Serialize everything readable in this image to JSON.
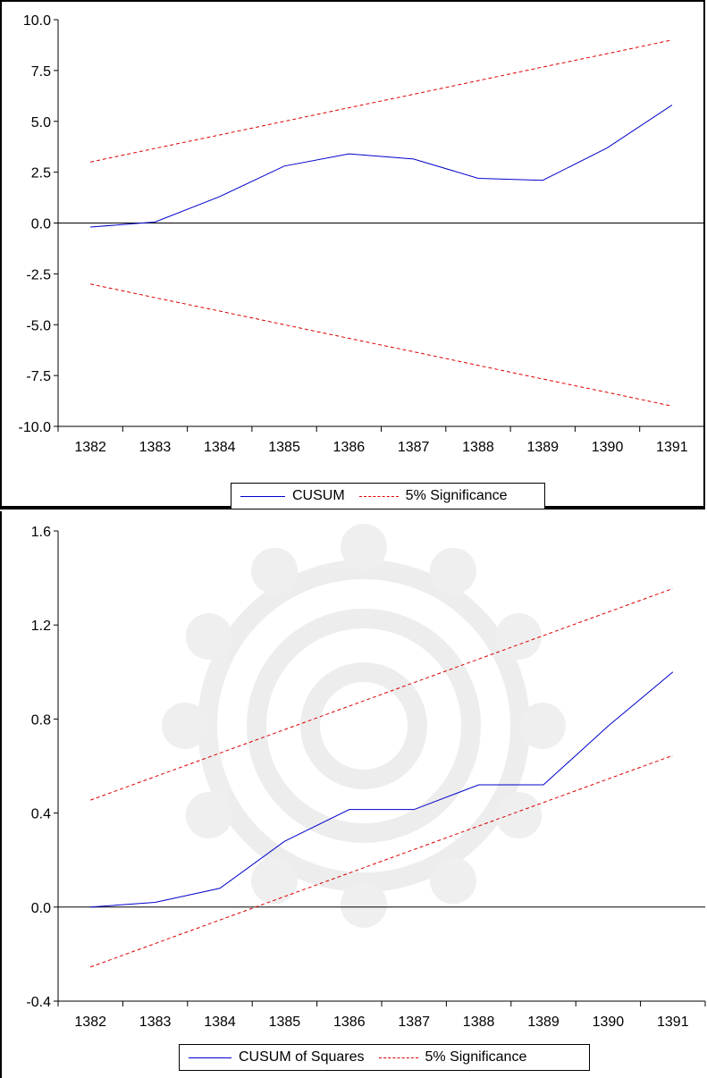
{
  "chart_data": [
    {
      "type": "line",
      "x": [
        "1382",
        "1383",
        "1384",
        "1385",
        "1386",
        "1387",
        "1388",
        "1389",
        "1390",
        "1391"
      ],
      "series": [
        {
          "name": "CUSUM",
          "color": "#0000cc",
          "style": "solid",
          "values": [
            -0.2,
            0.05,
            1.3,
            2.8,
            3.4,
            3.15,
            2.2,
            2.1,
            3.7,
            5.8
          ]
        },
        {
          "name": "5% Significance",
          "color": "#dd0000",
          "style": "dashed",
          "values": [
            3.0,
            3.67,
            4.33,
            5.0,
            5.67,
            6.33,
            7.0,
            7.67,
            8.33,
            9.0
          ]
        },
        {
          "name": "",
          "color": "#dd0000",
          "style": "dashed",
          "values": [
            -3.0,
            -3.67,
            -4.33,
            -5.0,
            -5.67,
            -6.33,
            -7.0,
            -7.67,
            -8.33,
            -9.0
          ]
        }
      ],
      "yticks": [
        "10.0",
        "7.5",
        "5.0",
        "2.5",
        "0.0",
        "-2.5",
        "-5.0",
        "-7.5",
        "-10.0"
      ],
      "ylim": [
        -10,
        10
      ],
      "zero_line": true,
      "legend": {
        "position": "bottom-center",
        "entries": [
          "CUSUM",
          "5% Significance"
        ]
      }
    },
    {
      "type": "line",
      "x": [
        "1382",
        "1383",
        "1384",
        "1385",
        "1386",
        "1387",
        "1388",
        "1389",
        "1390",
        "1391"
      ],
      "series": [
        {
          "name": "CUSUM of Squares",
          "color": "#0000cc",
          "style": "solid",
          "values": [
            0.0,
            0.02,
            0.08,
            0.28,
            0.415,
            0.415,
            0.52,
            0.52,
            0.77,
            1.0
          ]
        },
        {
          "name": "5% Significance",
          "color": "#dd0000",
          "style": "dashed",
          "values": [
            0.455,
            0.555,
            0.655,
            0.755,
            0.855,
            0.955,
            1.055,
            1.155,
            1.255,
            1.355
          ]
        },
        {
          "name": "",
          "color": "#dd0000",
          "style": "dashed",
          "values": [
            -0.255,
            -0.155,
            -0.055,
            0.045,
            0.145,
            0.245,
            0.345,
            0.445,
            0.545,
            0.645
          ]
        }
      ],
      "yticks": [
        "1.6",
        "1.2",
        "0.8",
        "0.4",
        "0.0",
        "-0.4"
      ],
      "ylim": [
        -0.4,
        1.6
      ],
      "zero_line": true,
      "legend": {
        "position": "bottom-center",
        "entries": [
          "CUSUM of Squares",
          "5% Significance"
        ]
      }
    }
  ]
}
